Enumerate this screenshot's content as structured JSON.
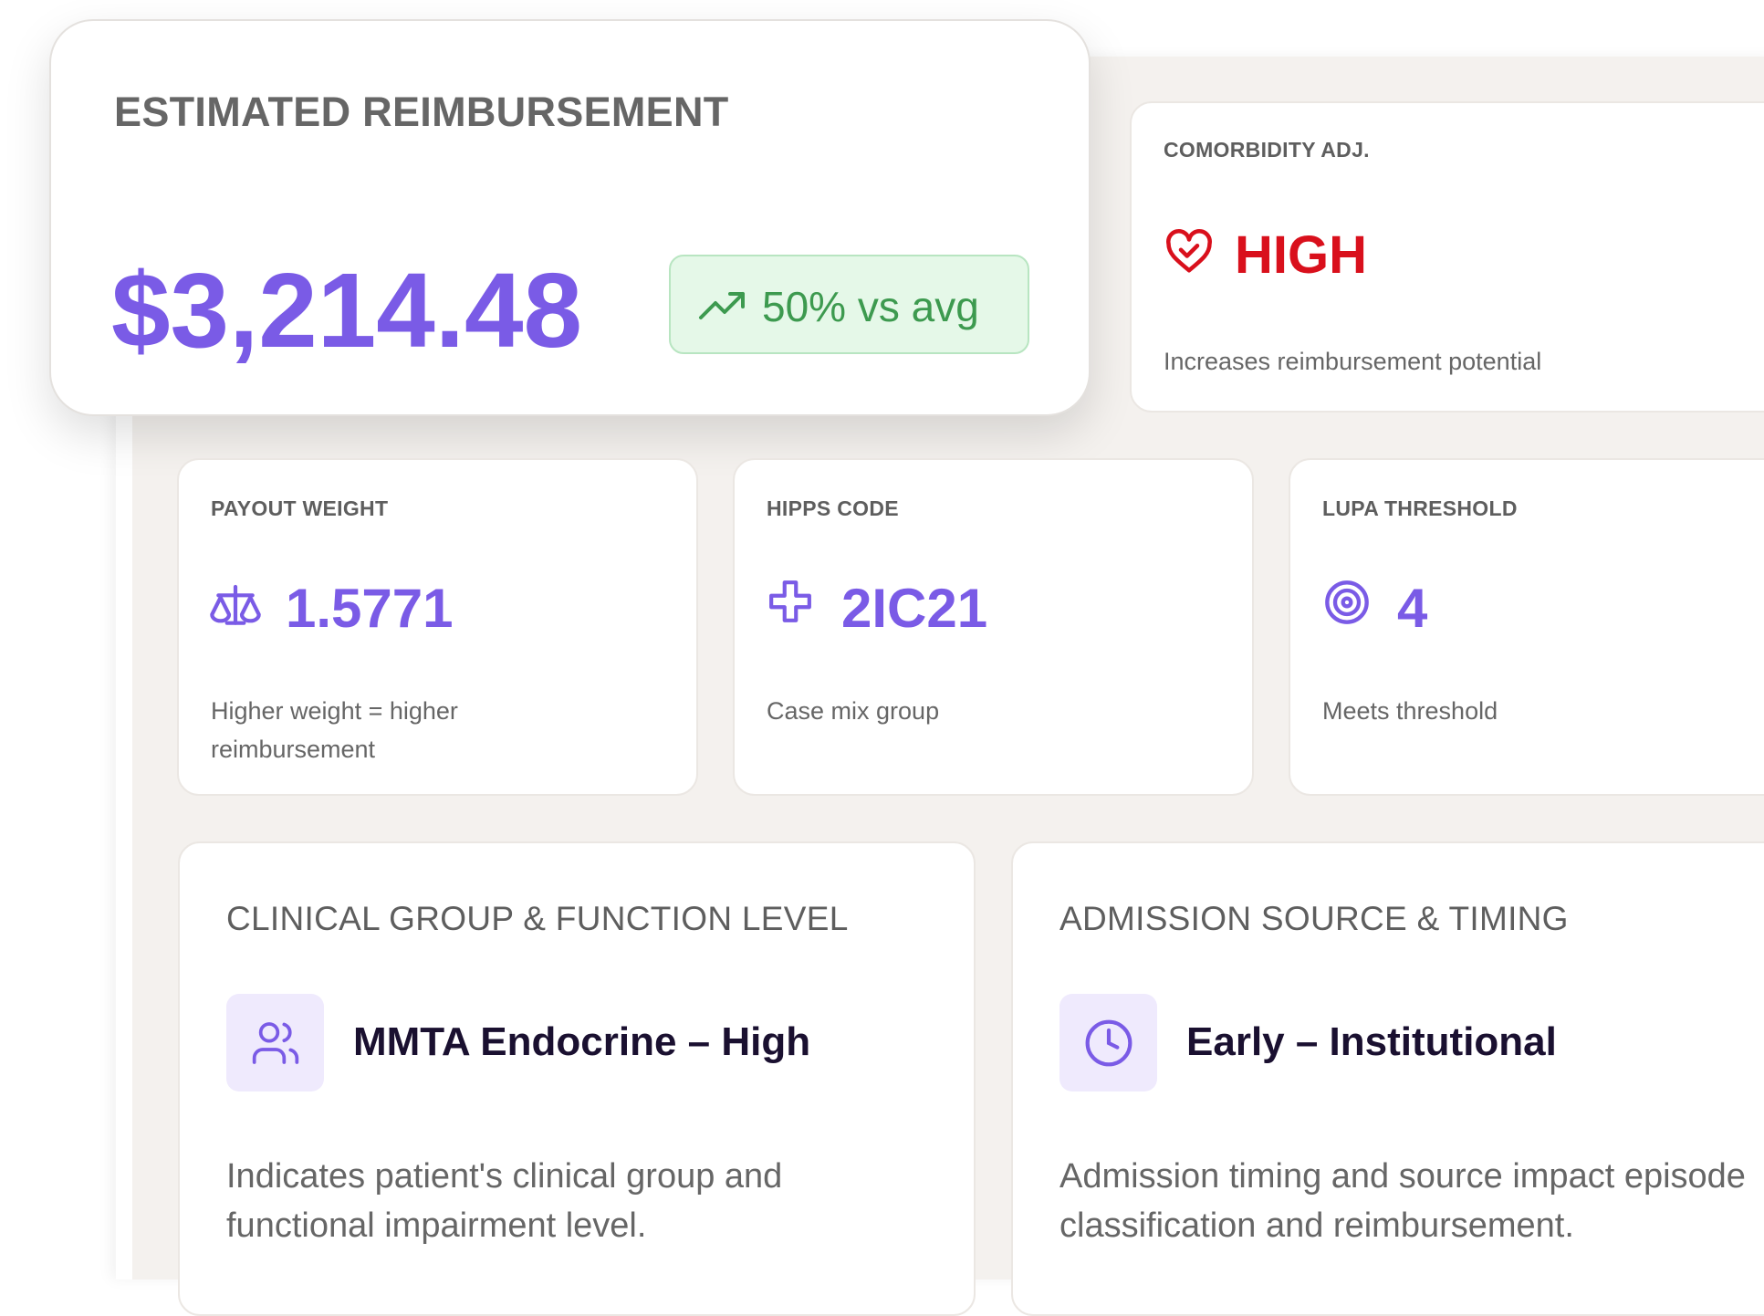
{
  "summary": {
    "label": "ESTIMATED REIMBURSEMENT",
    "amount": "$3,214.48",
    "badge": "50% vs avg"
  },
  "comorbidity": {
    "label": "COMORBIDITY ADJ.",
    "value": "HIGH",
    "description": "Increases reimbursement potential"
  },
  "metrics": [
    {
      "label": "PAYOUT WEIGHT",
      "value": "1.5771",
      "description": "Higher weight = higher reimbursement"
    },
    {
      "label": "HIPPS CODE",
      "value": "2IC21",
      "description": "Case mix group"
    },
    {
      "label": "LUPA THRESHOLD",
      "value": "4",
      "description": "Meets threshold"
    }
  ],
  "details": [
    {
      "heading": "CLINICAL GROUP & FUNCTION LEVEL",
      "title": "MMTA Endocrine – High",
      "description": "Indicates patient's clinical group and functional impairment level."
    },
    {
      "heading": "ADMISSION SOURCE & TIMING",
      "title": "Early – Institutional",
      "description": "Admission timing and source impact episode classification and reimbursement."
    }
  ]
}
